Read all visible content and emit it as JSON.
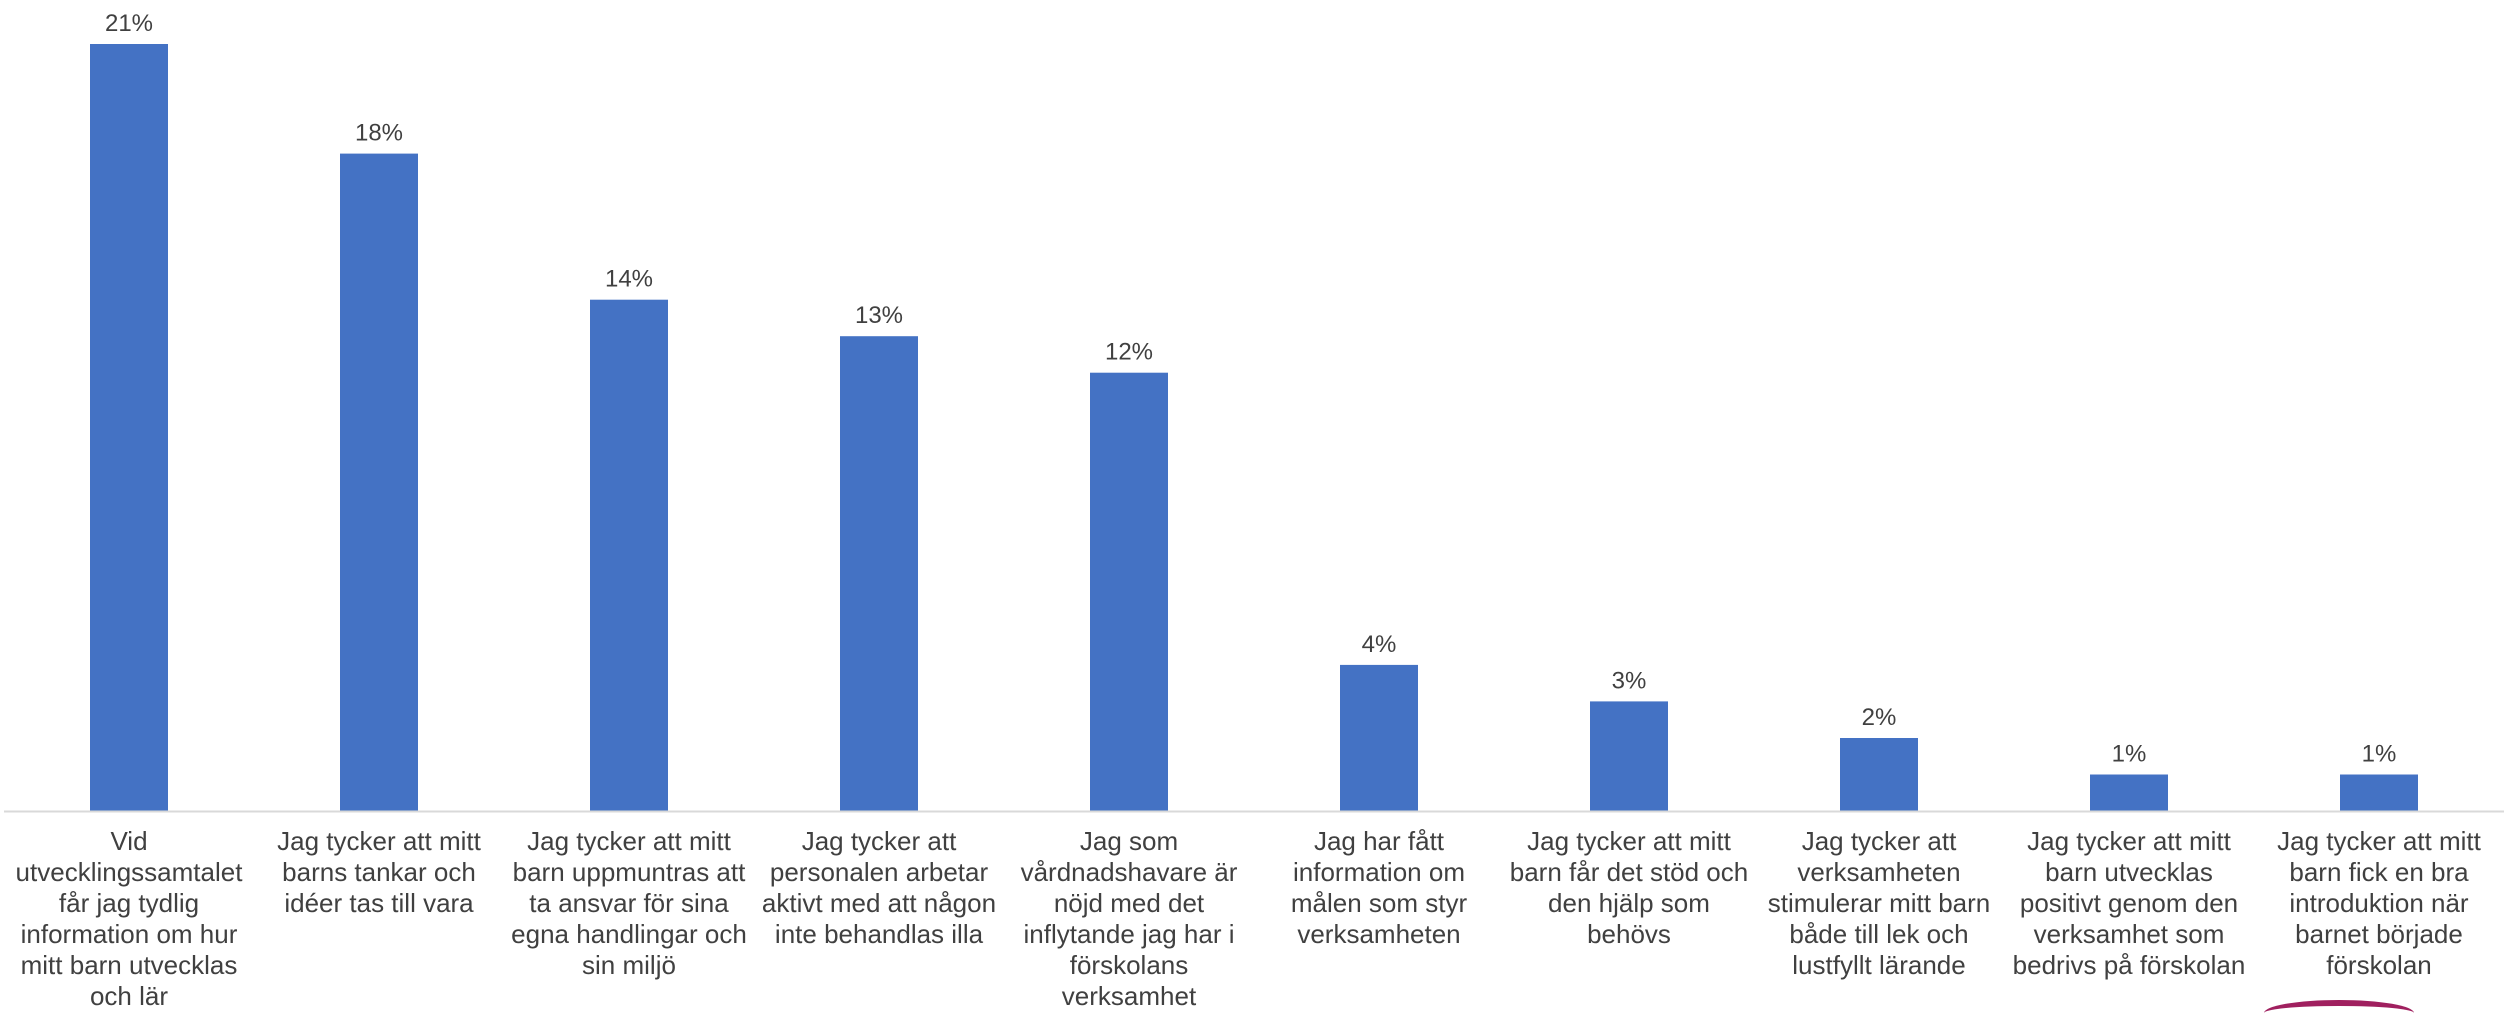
{
  "chart_data": {
    "type": "bar",
    "title": "",
    "xlabel": "",
    "ylabel": "",
    "ylim": [
      0,
      21
    ],
    "grid": false,
    "legend": "none",
    "value_suffix": "%",
    "bar_color": "#4472C4",
    "categories": [
      [
        "Vid",
        "utvecklingssamtalet",
        "får jag tydlig",
        "information om hur",
        "mitt barn utvecklas",
        "och lär"
      ],
      [
        "Jag tycker att mitt",
        "barns tankar och",
        "idéer tas till vara"
      ],
      [
        "Jag tycker att mitt",
        "barn uppmuntras att",
        "ta ansvar för sina",
        "egna handlingar och",
        "sin miljö"
      ],
      [
        "Jag tycker att",
        "personalen arbetar",
        "aktivt med att någon",
        "inte behandlas illa"
      ],
      [
        "Jag som",
        "vårdnadshavare är",
        "nöjd med det",
        "inflytande jag har i",
        "förskolans",
        "verksamhet"
      ],
      [
        "Jag har fått",
        "information om",
        "målen som styr",
        "verksamheten"
      ],
      [
        "Jag tycker att mitt",
        "barn får det stöd och",
        "den hjälp som",
        "behövs"
      ],
      [
        "Jag tycker att",
        "verksamheten",
        "stimulerar mitt barn",
        "både till lek och",
        "lustfyllt lärande"
      ],
      [
        "Jag tycker att mitt",
        "barn utvecklas",
        "positivt genom den",
        "verksamhet som",
        "bedrivs på förskolan"
      ],
      [
        "Jag tycker att mitt",
        "barn fick en bra",
        "introduktion när",
        "barnet började",
        "förskolan"
      ]
    ],
    "values": [
      21,
      18,
      14,
      13,
      12,
      4,
      3,
      2,
      1,
      1
    ],
    "data_labels": [
      "21%",
      "18%",
      "14%",
      "13%",
      "12%",
      "4%",
      "3%",
      "2%",
      "1%",
      "1%"
    ]
  }
}
